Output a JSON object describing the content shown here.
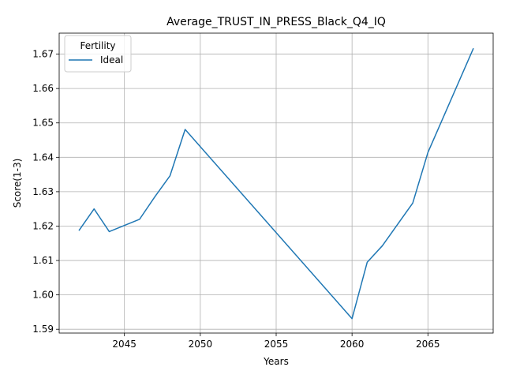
{
  "chart_data": {
    "type": "line",
    "title": "Average_TRUST_IN_PRESS_Black_Q4_IQ",
    "xlabel": "Years",
    "ylabel": "Score(1-3)",
    "xlim": [
      2040.7,
      2069.3
    ],
    "ylim": [
      1.5889,
      1.6761
    ],
    "xticks": [
      2045,
      2050,
      2055,
      2060,
      2065
    ],
    "yticks": [
      1.59,
      1.6,
      1.61,
      1.62,
      1.63,
      1.64,
      1.65,
      1.66,
      1.67
    ],
    "xtick_labels": [
      "2045",
      "2050",
      "2055",
      "2060",
      "2065"
    ],
    "ytick_labels": [
      "1.59",
      "1.60",
      "1.61",
      "1.62",
      "1.63",
      "1.64",
      "1.65",
      "1.66",
      "1.67"
    ],
    "grid": true,
    "legend": {
      "title": "Fertility",
      "placement": "top-left",
      "entries": [
        "Ideal"
      ]
    },
    "series": [
      {
        "name": "Ideal",
        "color": "#1f77b4",
        "x": [
          2042,
          2043,
          2044,
          2046,
          2047,
          2048,
          2049,
          2060,
          2061,
          2062,
          2064,
          2065,
          2068
        ],
        "y": [
          1.6187,
          1.625,
          1.6184,
          1.622,
          1.6285,
          1.6346,
          1.6481,
          1.5931,
          1.6095,
          1.6143,
          1.6267,
          1.6414,
          1.6717
        ]
      }
    ]
  }
}
